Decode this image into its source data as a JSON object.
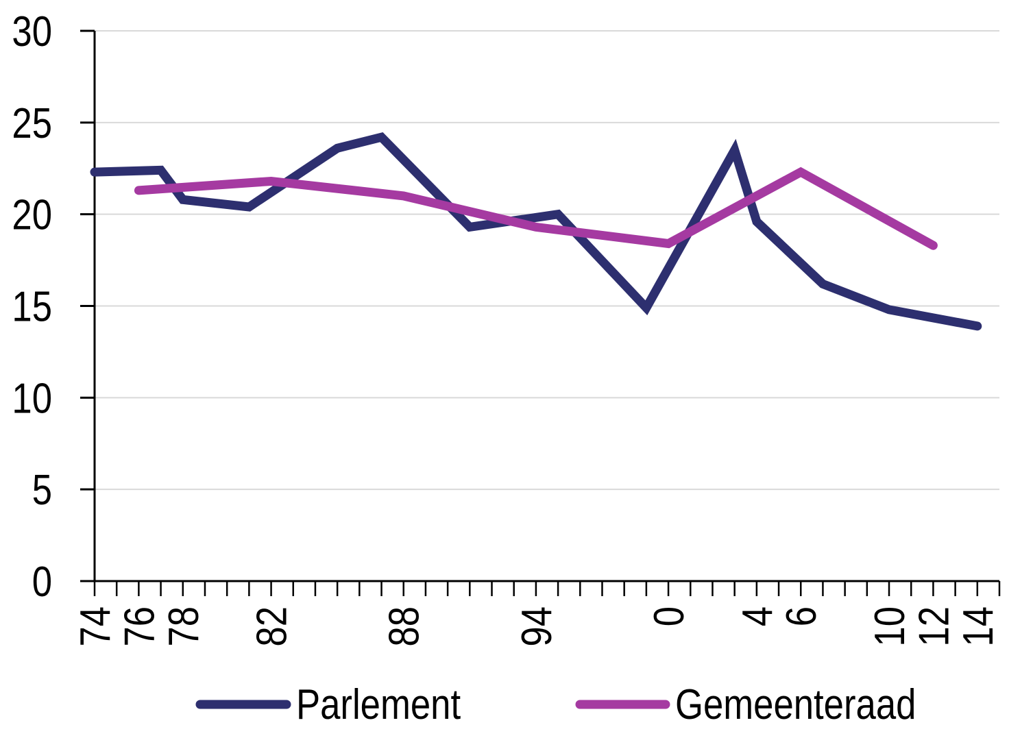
{
  "chart_data": {
    "type": "line",
    "title": "",
    "xlabel": "",
    "ylabel": "",
    "ylim": [
      0,
      30
    ],
    "y_ticks": [
      0,
      5,
      10,
      15,
      20,
      25,
      30
    ],
    "x_range": [
      1974,
      2015
    ],
    "x_minor_tick_every_years": 1,
    "grid": "horizontal",
    "legend_position": "bottom",
    "x_tick_labels": [
      {
        "year": 1974,
        "label": "74"
      },
      {
        "year": 1976,
        "label": "76"
      },
      {
        "year": 1978,
        "label": "78"
      },
      {
        "year": 1982,
        "label": "82"
      },
      {
        "year": 1988,
        "label": "88"
      },
      {
        "year": 1994,
        "label": "94"
      },
      {
        "year": 2000,
        "label": "0"
      },
      {
        "year": 2004,
        "label": "4"
      },
      {
        "year": 2006,
        "label": "6"
      },
      {
        "year": 2010,
        "label": "10"
      },
      {
        "year": 2012,
        "label": "12"
      },
      {
        "year": 2014,
        "label": "14"
      }
    ],
    "series": [
      {
        "name": "Parlement",
        "color": "#2D2F6F",
        "points": [
          {
            "year": 1974,
            "value": 22.3
          },
          {
            "year": 1977,
            "value": 22.4
          },
          {
            "year": 1978,
            "value": 20.8
          },
          {
            "year": 1981,
            "value": 20.4
          },
          {
            "year": 1985,
            "value": 23.6
          },
          {
            "year": 1987,
            "value": 24.2
          },
          {
            "year": 1991,
            "value": 19.3
          },
          {
            "year": 1995,
            "value": 20.0
          },
          {
            "year": 1999,
            "value": 14.9
          },
          {
            "year": 2003,
            "value": 23.5
          },
          {
            "year": 2004,
            "value": 19.6
          },
          {
            "year": 2007,
            "value": 16.2
          },
          {
            "year": 2010,
            "value": 14.8
          },
          {
            "year": 2014,
            "value": 13.9
          }
        ]
      },
      {
        "name": "Gemeenteraad",
        "color": "#A53AA1",
        "points": [
          {
            "year": 1976,
            "value": 21.3
          },
          {
            "year": 1982,
            "value": 21.8
          },
          {
            "year": 1988,
            "value": 21.0
          },
          {
            "year": 1994,
            "value": 19.3
          },
          {
            "year": 2000,
            "value": 18.4
          },
          {
            "year": 2006,
            "value": 22.3
          },
          {
            "year": 2012,
            "value": 18.3
          }
        ]
      }
    ]
  },
  "colors": {
    "background": "#FFFFFF",
    "gridline": "#D9D9D9",
    "axis": "#000000",
    "text": "#000000"
  }
}
